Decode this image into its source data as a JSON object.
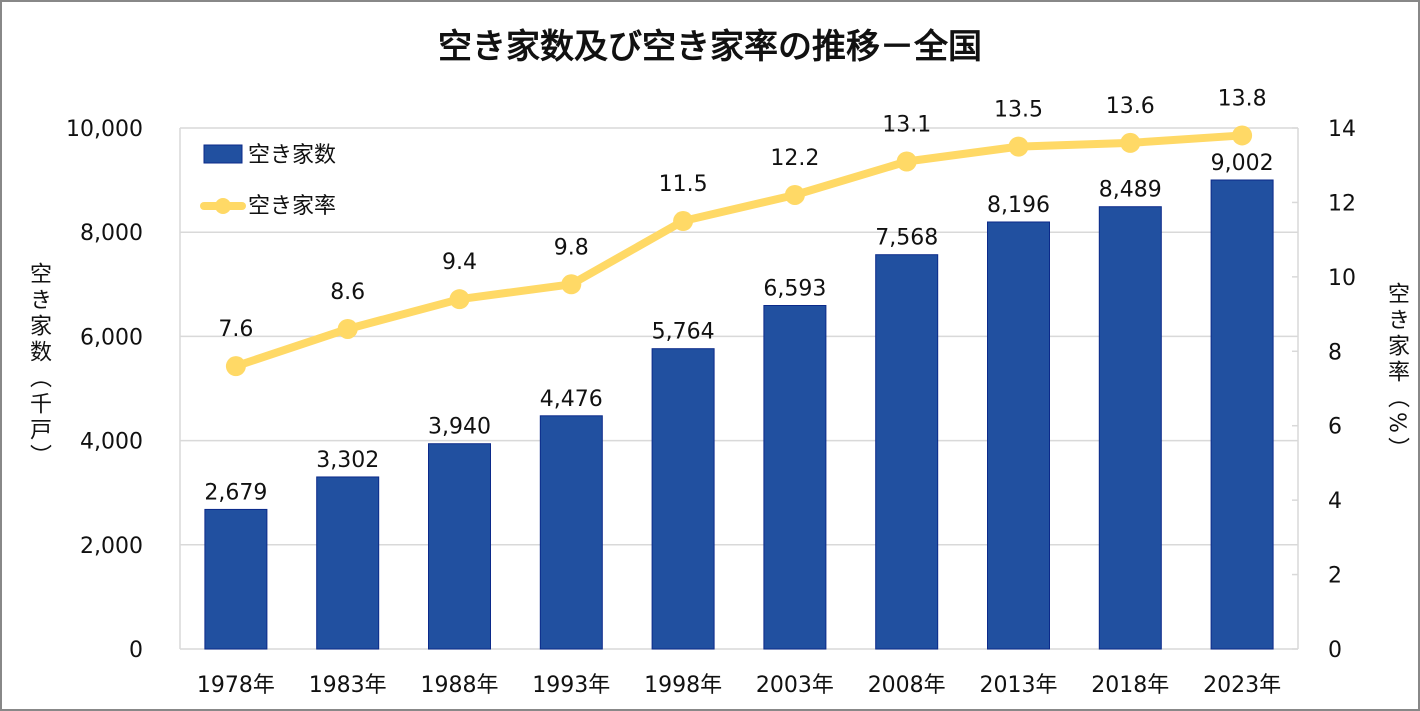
{
  "chart_data": {
    "type": "bar+line",
    "title": "空き家数及び空き家率の推移－全国",
    "categories": [
      "1978年",
      "1983年",
      "1988年",
      "1993年",
      "1998年",
      "2003年",
      "2008年",
      "2013年",
      "2018年",
      "2023年"
    ],
    "series": [
      {
        "name": "空き家数",
        "type": "bar",
        "axis": "left",
        "color": "#2150A0",
        "values": [
          2679,
          3302,
          3940,
          4476,
          5764,
          6593,
          7568,
          8196,
          8489,
          9002
        ],
        "labels": [
          "2,679",
          "3,302",
          "3,940",
          "4,476",
          "5,764",
          "6,593",
          "7,568",
          "8,196",
          "8,489",
          "9,002"
        ]
      },
      {
        "name": "空き家率",
        "type": "line",
        "axis": "right",
        "color": "#FFD966",
        "values": [
          7.6,
          8.6,
          9.4,
          9.8,
          11.5,
          12.2,
          13.1,
          13.5,
          13.6,
          13.8
        ],
        "labels": [
          "7.6",
          "8.6",
          "9.4",
          "9.8",
          "11.5",
          "12.2",
          "13.1",
          "13.5",
          "13.6",
          "13.8"
        ]
      }
    ],
    "ylabel": "空き家数（千戸）",
    "y2label": "空き家率（%）",
    "ylim": [
      0,
      10000
    ],
    "y2lim": [
      0,
      14
    ],
    "yticks": [
      "0",
      "2,000",
      "4,000",
      "6,000",
      "8,000",
      "10,000"
    ],
    "y2ticks": [
      "0",
      "2",
      "4",
      "6",
      "8",
      "10",
      "12",
      "14"
    ],
    "grid": true,
    "legend": "top-left"
  }
}
